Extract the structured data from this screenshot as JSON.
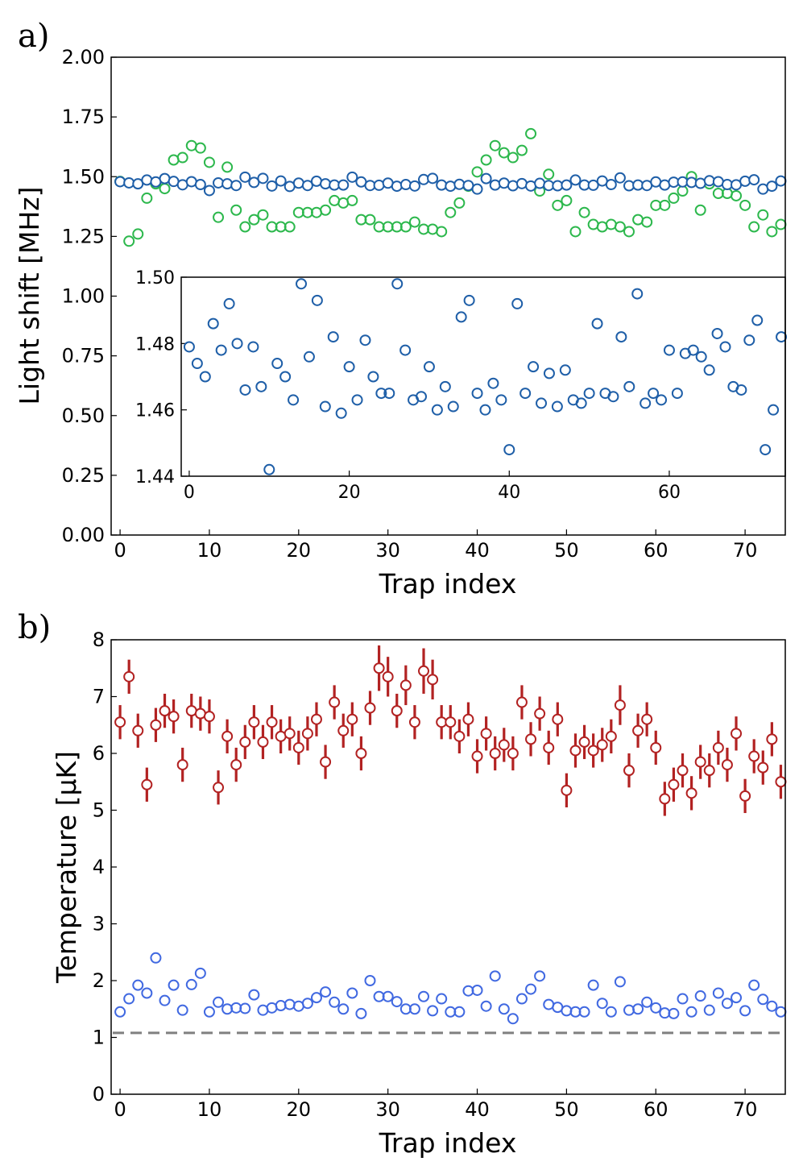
{
  "chart_data": [
    {
      "panel_label": "a)",
      "type": "scatter",
      "xlabel": "Trap index",
      "ylabel": "Light shift [MHz]",
      "xlim": [
        -1,
        74.5
      ],
      "ylim": [
        0,
        2
      ],
      "xticks": [
        0,
        10,
        20,
        30,
        40,
        50,
        60,
        70
      ],
      "yticks": [
        "0.00",
        "0.25",
        "0.50",
        "0.75",
        "1.00",
        "1.25",
        "1.50",
        "1.75",
        "2.00"
      ],
      "colors": {
        "series_1": "#1f5fa8",
        "series_2": "#2db84d"
      },
      "series": [
        {
          "marker": "open-circle",
          "color": "#1f5fa8",
          "values": [
            1.479,
            1.474,
            1.47,
            1.486,
            1.478,
            1.492,
            1.48,
            1.466,
            1.479,
            1.467,
            1.442,
            1.474,
            1.47,
            1.463,
            1.498,
            1.476,
            1.493,
            1.461,
            1.482,
            1.459,
            1.473,
            1.463,
            1.481,
            1.47,
            1.465,
            1.465,
            1.498,
            1.478,
            1.463,
            1.464,
            1.473,
            1.46,
            1.467,
            1.461,
            1.488,
            1.493,
            1.465,
            1.46,
            1.468,
            1.463,
            1.448,
            1.492,
            1.465,
            1.473,
            1.462,
            1.471,
            1.461,
            1.472,
            1.463,
            1.462,
            1.465,
            1.486,
            1.465,
            1.464,
            1.482,
            1.467,
            1.495,
            1.462,
            1.465,
            1.463,
            1.478,
            1.465,
            1.477,
            1.478,
            1.476,
            1.472,
            1.483,
            1.479,
            1.467,
            1.466,
            1.481,
            1.487,
            1.448,
            1.46,
            1.482
          ]
        },
        {
          "marker": "open-circle",
          "color": "#2db84d",
          "values": [
            1.48,
            1.23,
            1.26,
            1.41,
            1.47,
            1.45,
            1.57,
            1.58,
            1.63,
            1.62,
            1.56,
            1.33,
            1.54,
            1.36,
            1.29,
            1.32,
            1.34,
            1.29,
            1.29,
            1.29,
            1.35,
            1.35,
            1.35,
            1.36,
            1.4,
            1.39,
            1.4,
            1.32,
            1.32,
            1.29,
            1.29,
            1.29,
            1.29,
            1.31,
            1.28,
            1.28,
            1.27,
            1.35,
            1.39,
            1.46,
            1.52,
            1.57,
            1.63,
            1.6,
            1.58,
            1.61,
            1.68,
            1.44,
            1.51,
            1.38,
            1.4,
            1.27,
            1.35,
            1.3,
            1.29,
            1.3,
            1.29,
            1.27,
            1.32,
            1.31,
            1.38,
            1.38,
            1.41,
            1.44,
            1.5,
            1.36,
            1.47,
            1.43,
            1.43,
            1.42,
            1.38,
            1.29,
            1.34,
            1.27,
            1.3
          ]
        }
      ],
      "inset": {
        "type": "scatter",
        "xlim": [
          -1,
          74.5
        ],
        "ylim": [
          1.44,
          1.5
        ],
        "xticks": [
          0,
          20,
          40,
          60
        ],
        "yticks": [
          "1.44",
          "1.46",
          "1.48",
          "1.50"
        ],
        "series_ref": 0
      }
    },
    {
      "panel_label": "b)",
      "type": "scatter",
      "xlabel": "Trap index",
      "ylabel": "Temperature [μK]",
      "xlim": [
        -1,
        74.5
      ],
      "ylim": [
        0,
        8
      ],
      "xticks": [
        0,
        10,
        20,
        30,
        40,
        50,
        60,
        70
      ],
      "yticks": [
        "0",
        "1",
        "2",
        "3",
        "4",
        "5",
        "6",
        "7",
        "8"
      ],
      "colors": {
        "series_1": "#b22222",
        "series_2": "#4169e1",
        "reference_line": "#808080"
      },
      "series": [
        {
          "marker": "open-circle-with-errorbar",
          "color": "#b22222",
          "values": [
            6.55,
            7.35,
            6.4,
            5.45,
            6.5,
            6.75,
            6.65,
            5.8,
            6.75,
            6.7,
            6.65,
            5.4,
            6.3,
            5.8,
            6.2,
            6.55,
            6.2,
            6.55,
            6.3,
            6.35,
            6.1,
            6.35,
            6.6,
            5.85,
            6.9,
            6.4,
            6.6,
            6.0,
            6.8,
            7.5,
            7.35,
            6.75,
            7.2,
            6.55,
            7.45,
            7.3,
            6.55,
            6.55,
            6.3,
            6.6,
            5.95,
            6.35,
            6.0,
            6.15,
            6.0,
            6.9,
            6.25,
            6.7,
            6.1,
            6.6,
            5.35,
            6.05,
            6.2,
            6.05,
            6.15,
            6.3,
            6.85,
            5.7,
            6.4,
            6.6,
            6.1,
            5.2,
            5.45,
            5.7,
            5.3,
            5.85,
            5.7,
            6.1,
            5.8,
            6.35,
            5.25,
            5.95,
            5.75,
            6.25,
            5.5
          ],
          "errors": [
            0.3,
            0.3,
            0.3,
            0.3,
            0.3,
            0.3,
            0.3,
            0.3,
            0.3,
            0.3,
            0.3,
            0.3,
            0.3,
            0.3,
            0.3,
            0.3,
            0.3,
            0.3,
            0.3,
            0.3,
            0.3,
            0.3,
            0.3,
            0.3,
            0.3,
            0.3,
            0.3,
            0.3,
            0.3,
            0.4,
            0.35,
            0.3,
            0.35,
            0.3,
            0.4,
            0.35,
            0.3,
            0.3,
            0.3,
            0.3,
            0.3,
            0.3,
            0.3,
            0.3,
            0.3,
            0.3,
            0.3,
            0.3,
            0.3,
            0.3,
            0.3,
            0.3,
            0.3,
            0.3,
            0.3,
            0.3,
            0.35,
            0.3,
            0.3,
            0.3,
            0.3,
            0.3,
            0.3,
            0.3,
            0.3,
            0.3,
            0.3,
            0.3,
            0.3,
            0.3,
            0.3,
            0.3,
            0.3,
            0.3,
            0.3
          ]
        },
        {
          "marker": "open-circle",
          "color": "#4169e1",
          "values": [
            1.45,
            1.68,
            1.92,
            1.78,
            2.4,
            1.65,
            1.92,
            1.48,
            1.93,
            2.13,
            1.45,
            1.62,
            1.5,
            1.52,
            1.51,
            1.75,
            1.48,
            1.52,
            1.56,
            1.58,
            1.55,
            1.6,
            1.7,
            1.8,
            1.62,
            1.5,
            1.78,
            1.42,
            2.0,
            1.72,
            1.72,
            1.63,
            1.5,
            1.5,
            1.72,
            1.47,
            1.68,
            1.45,
            1.45,
            1.82,
            1.83,
            1.55,
            2.08,
            1.5,
            1.33,
            1.68,
            1.85,
            2.08,
            1.58,
            1.53,
            1.47,
            1.45,
            1.45,
            1.92,
            1.6,
            1.45,
            1.98,
            1.48,
            1.5,
            1.62,
            1.52,
            1.43,
            1.42,
            1.68,
            1.45,
            1.73,
            1.48,
            1.78,
            1.6,
            1.7,
            1.47,
            1.92,
            1.67,
            1.55,
            1.45
          ]
        }
      ],
      "reference_line": {
        "y": 1.08,
        "style": "dashed"
      }
    }
  ]
}
